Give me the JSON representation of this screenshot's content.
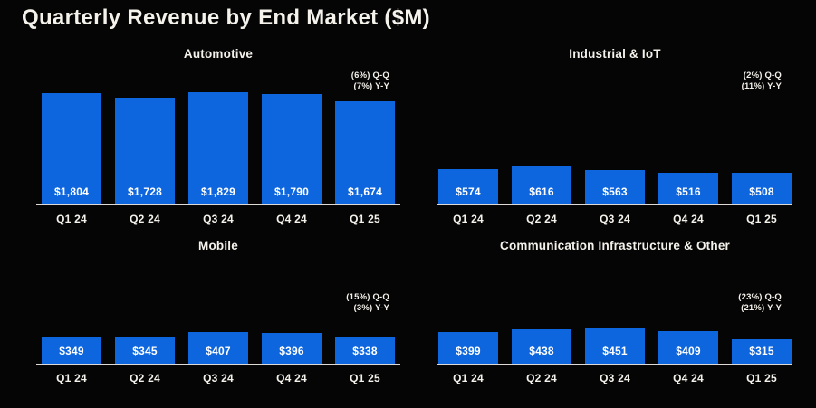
{
  "page": {
    "title": "Quarterly Revenue by End Market ($M)"
  },
  "colors": {
    "background": "#050505",
    "bar": "#0E66DE",
    "baseline": "#DEDBD6",
    "text": "#F5F2EC"
  },
  "chart_data": [
    {
      "type": "bar",
      "title": "Automotive",
      "categories": [
        "Q1 24",
        "Q2 24",
        "Q3 24",
        "Q4 24",
        "Q1 25"
      ],
      "values": [
        1804,
        1728,
        1829,
        1790,
        1674
      ],
      "value_labels": [
        "$1,804",
        "$1,728",
        "$1,829",
        "$1,790",
        "$1,674"
      ],
      "annotations": {
        "qq": "(6%) Q-Q",
        "yy": "(7%) Y-Y"
      },
      "ylim": [
        0,
        1900
      ],
      "legend": "none",
      "grid": "off"
    },
    {
      "type": "bar",
      "title": "Industrial & IoT",
      "categories": [
        "Q1 24",
        "Q2 24",
        "Q3 24",
        "Q4 24",
        "Q1 25"
      ],
      "values": [
        574,
        616,
        563,
        516,
        508
      ],
      "value_labels": [
        "$574",
        "$616",
        "$563",
        "$516",
        "$508"
      ],
      "annotations": {
        "qq": "(2%) Q-Q",
        "yy": "(11%) Y-Y"
      },
      "ylim": [
        0,
        1900
      ],
      "legend": "none",
      "grid": "off"
    },
    {
      "type": "bar",
      "title": "Mobile",
      "categories": [
        "Q1 24",
        "Q2 24",
        "Q3 24",
        "Q4 24",
        "Q1 25"
      ],
      "values": [
        349,
        345,
        407,
        396,
        338
      ],
      "value_labels": [
        "$349",
        "$345",
        "$407",
        "$396",
        "$338"
      ],
      "annotations": {
        "qq": "(15%) Q-Q",
        "yy": "(3%) Y-Y"
      },
      "ylim": [
        0,
        460
      ],
      "legend": "none",
      "grid": "off"
    },
    {
      "type": "bar",
      "title": "Communication Infrastructure & Other",
      "categories": [
        "Q1 24",
        "Q2 24",
        "Q3 24",
        "Q4 24",
        "Q1 25"
      ],
      "values": [
        399,
        438,
        451,
        409,
        315
      ],
      "value_labels": [
        "$399",
        "$438",
        "$451",
        "$409",
        "$315"
      ],
      "annotations": {
        "qq": "(23%) Q-Q",
        "yy": "(21%) Y-Y"
      },
      "ylim": [
        0,
        460
      ],
      "legend": "none",
      "grid": "off"
    }
  ]
}
